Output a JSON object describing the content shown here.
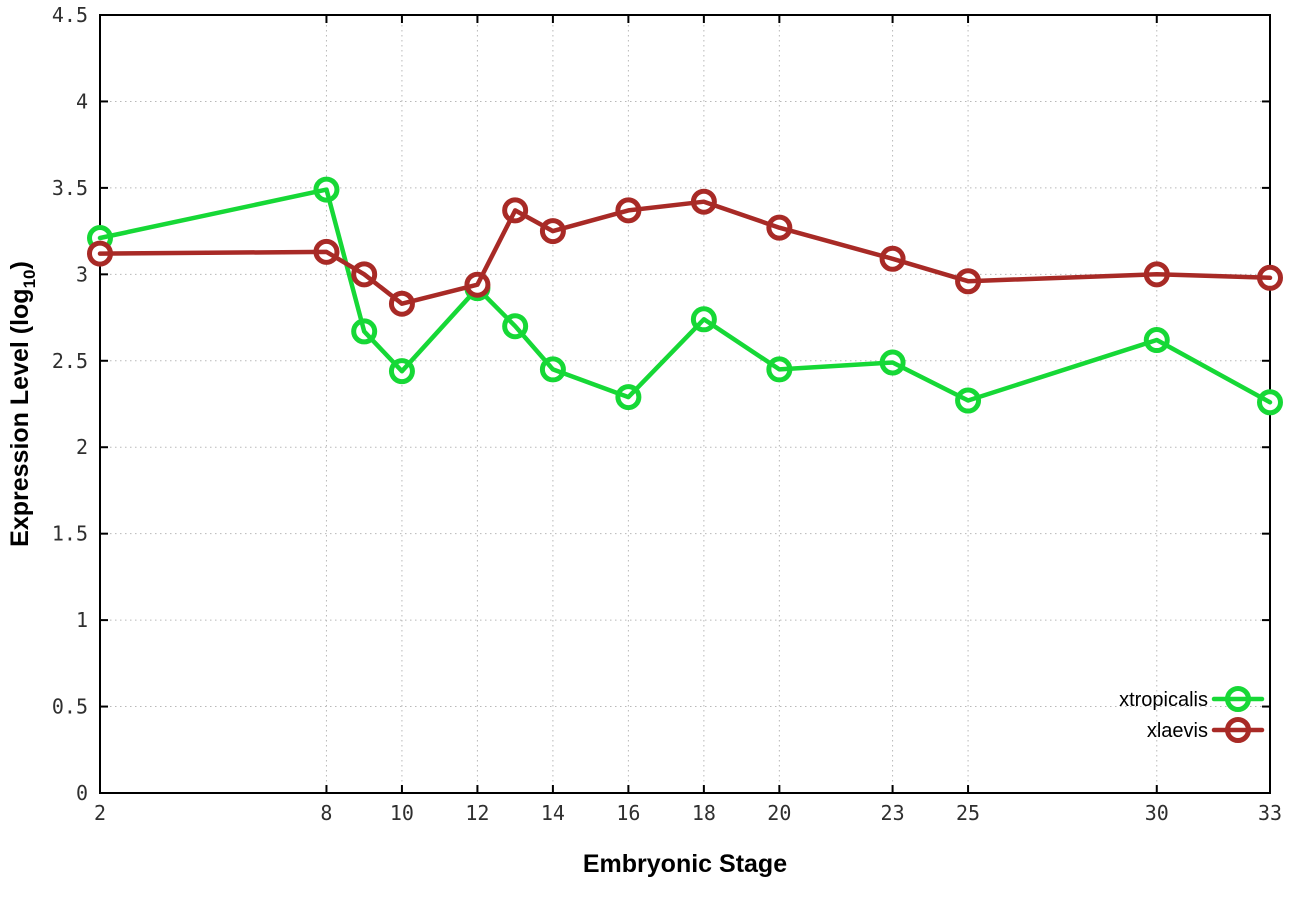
{
  "chart_data": {
    "type": "line",
    "title": "",
    "xlabel": "Embryonic Stage",
    "ylabel": "Expression Level (log10)",
    "ylabel_parts": {
      "prefix": "Expression Level (log",
      "sub": "10",
      "suffix": ")"
    },
    "x": [
      2,
      8,
      9,
      10,
      12,
      13,
      14,
      16,
      18,
      20,
      23,
      25,
      30,
      33
    ],
    "series": [
      {
        "name": "xtropicalis",
        "color": "#16d836",
        "values": [
          3.21,
          3.49,
          2.67,
          2.44,
          2.92,
          2.7,
          2.45,
          2.29,
          2.74,
          2.45,
          2.49,
          2.27,
          2.62,
          2.26
        ]
      },
      {
        "name": "xlaevis",
        "color": "#a82a26",
        "values": [
          3.12,
          3.13,
          3.0,
          2.83,
          2.94,
          3.37,
          3.25,
          3.37,
          3.42,
          3.27,
          3.09,
          2.96,
          3.0,
          2.98
        ]
      }
    ],
    "xlim": [
      2,
      33
    ],
    "ylim": [
      0,
      4.5
    ],
    "xticks": [
      2,
      8,
      10,
      12,
      14,
      16,
      18,
      20,
      23,
      25,
      30,
      33
    ],
    "yticks": [
      0,
      0.5,
      1,
      1.5,
      2,
      2.5,
      3,
      3.5,
      4,
      4.5
    ],
    "grid": true,
    "grid_style": "dotted",
    "legend_position": "inside-bottom-right",
    "legend_box": false,
    "marker": "open-circle",
    "background": "#ffffff",
    "frame_color": "#000000",
    "grid_color": "#b8b8b8",
    "tick_label_color": "#2f2f2f"
  }
}
